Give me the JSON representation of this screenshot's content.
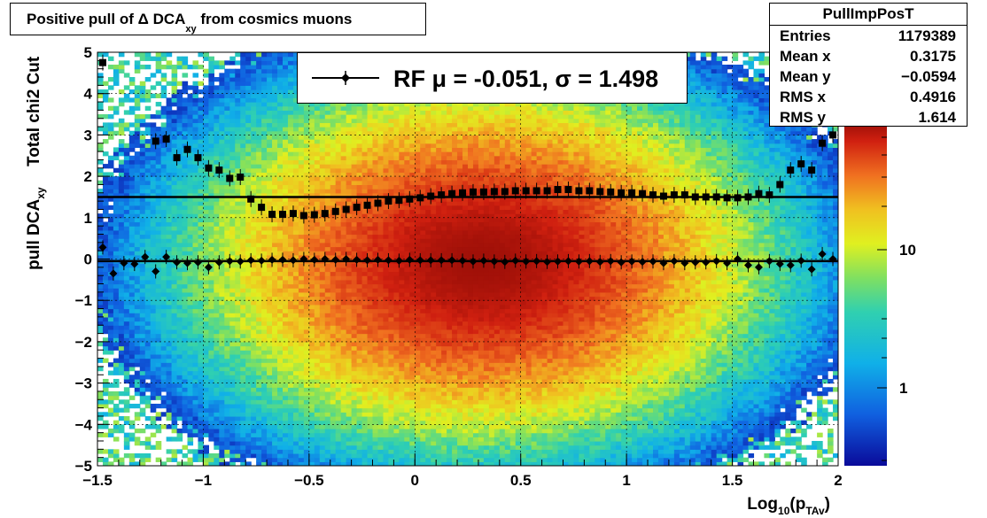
{
  "title": {
    "prefix": "Positive pull of Δ DCA",
    "sub": "xy",
    "suffix": "from cosmics muons"
  },
  "stats": {
    "name": "PullImpPosT",
    "rows": [
      {
        "key": "Entries",
        "value": "1179389"
      },
      {
        "key": "Mean x",
        "value": "0.3175"
      },
      {
        "key": "Mean y",
        "value": "−0.0594"
      },
      {
        "key": "RMS x",
        "value": "0.4916"
      },
      {
        "key": "RMS y",
        "value": "1.614"
      }
    ]
  },
  "legend": {
    "text": "RF μ = -0.051, σ =   1.498"
  },
  "chart_data": {
    "type": "heatmap",
    "xlabel": "Log10(pTAv)",
    "ylabel": "pull DCAxy",
    "ylabel2": "Total chi2 Cut",
    "xlim": [
      -1.5,
      2
    ],
    "ylim": [
      -5,
      5
    ],
    "x_ticks": [
      -1.5,
      -1,
      -0.5,
      0,
      0.5,
      1,
      1.5,
      2
    ],
    "x_tick_labels": [
      "−1.5",
      "−1",
      "−0.5",
      "0",
      "0.5",
      "1",
      "1.5",
      "2"
    ],
    "y_ticks": [
      -5,
      -4,
      -3,
      -2,
      -1,
      0,
      1,
      2,
      3,
      4,
      5
    ],
    "y_tick_labels": [
      "−5",
      "−4",
      "−3",
      "−2",
      "−1",
      "0",
      "1",
      "2",
      "3",
      "4",
      "5"
    ],
    "z_scale": "log",
    "z_tick_labels": [
      "10",
      "1"
    ],
    "grid": true,
    "density_center": [
      0.3175,
      -0.0594
    ],
    "density_rms": [
      0.4916,
      1.614
    ],
    "fit_lines": [
      {
        "y": 1.498
      },
      {
        "y": -0.051
      }
    ],
    "sigma_x": [
      -1.475,
      -1.225,
      -1.175,
      -1.125,
      -1.075,
      -1.025,
      -0.975,
      -0.925,
      -0.875,
      -0.825,
      -0.775,
      -0.725,
      -0.675,
      -0.625,
      -0.575,
      -0.525,
      -0.475,
      -0.425,
      -0.375,
      -0.325,
      -0.275,
      -0.225,
      -0.175,
      -0.125,
      -0.075,
      -0.025,
      0.025,
      0.075,
      0.125,
      0.175,
      0.225,
      0.275,
      0.325,
      0.375,
      0.425,
      0.475,
      0.525,
      0.575,
      0.625,
      0.675,
      0.725,
      0.775,
      0.825,
      0.875,
      0.925,
      0.975,
      1.025,
      1.075,
      1.125,
      1.175,
      1.225,
      1.275,
      1.325,
      1.375,
      1.425,
      1.475,
      1.525,
      1.575,
      1.625,
      1.675,
      1.725,
      1.775,
      1.825,
      1.875,
      1.925,
      1.975
    ],
    "sigma_y": [
      4.75,
      2.85,
      2.9,
      2.45,
      2.65,
      2.45,
      2.2,
      2.15,
      1.95,
      1.98,
      1.45,
      1.25,
      1.08,
      1.08,
      1.1,
      1.05,
      1.07,
      1.1,
      1.15,
      1.2,
      1.25,
      1.3,
      1.35,
      1.4,
      1.42,
      1.45,
      1.48,
      1.52,
      1.55,
      1.58,
      1.6,
      1.62,
      1.62,
      1.63,
      1.63,
      1.65,
      1.65,
      1.65,
      1.65,
      1.68,
      1.68,
      1.65,
      1.65,
      1.63,
      1.62,
      1.6,
      1.6,
      1.58,
      1.55,
      1.52,
      1.55,
      1.55,
      1.5,
      1.5,
      1.5,
      1.48,
      1.48,
      1.5,
      1.58,
      1.55,
      1.8,
      2.15,
      2.3,
      2.15,
      2.8,
      3.0
    ],
    "mean_x": [
      -1.475,
      -1.425,
      -1.375,
      -1.325,
      -1.275,
      -1.225,
      -1.175,
      -1.125,
      -1.075,
      -1.025,
      -0.975,
      -0.925,
      -0.875,
      -0.825,
      -0.775,
      -0.725,
      -0.675,
      -0.625,
      -0.575,
      -0.525,
      -0.475,
      -0.425,
      -0.375,
      -0.325,
      -0.275,
      -0.225,
      -0.175,
      -0.125,
      -0.075,
      -0.025,
      0.025,
      0.075,
      0.125,
      0.175,
      0.225,
      0.275,
      0.325,
      0.375,
      0.425,
      0.475,
      0.525,
      0.575,
      0.625,
      0.675,
      0.725,
      0.775,
      0.825,
      0.875,
      0.925,
      0.975,
      1.025,
      1.075,
      1.125,
      1.175,
      1.225,
      1.275,
      1.325,
      1.375,
      1.425,
      1.475,
      1.525,
      1.575,
      1.625,
      1.675,
      1.725,
      1.775,
      1.825,
      1.875,
      1.925,
      1.975
    ],
    "mean_y": [
      0.28,
      -0.35,
      -0.1,
      -0.12,
      0.05,
      -0.3,
      0.05,
      -0.08,
      -0.1,
      -0.08,
      -0.2,
      -0.08,
      -0.05,
      -0.06,
      -0.03,
      -0.04,
      -0.02,
      -0.02,
      -0.03,
      0.0,
      -0.02,
      0.0,
      -0.02,
      0.0,
      -0.02,
      -0.03,
      -0.02,
      -0.03,
      -0.04,
      -0.02,
      -0.03,
      -0.03,
      -0.03,
      -0.03,
      -0.04,
      -0.06,
      -0.04,
      -0.06,
      -0.07,
      -0.04,
      -0.06,
      -0.05,
      -0.07,
      -0.06,
      -0.05,
      -0.06,
      -0.05,
      -0.07,
      -0.05,
      -0.08,
      -0.06,
      -0.07,
      -0.06,
      -0.1,
      -0.05,
      -0.1,
      -0.08,
      -0.08,
      -0.05,
      -0.1,
      -0.0,
      -0.15,
      -0.2,
      -0.05,
      -0.12,
      -0.15,
      -0.04,
      -0.25,
      0.12,
      0.0
    ]
  }
}
